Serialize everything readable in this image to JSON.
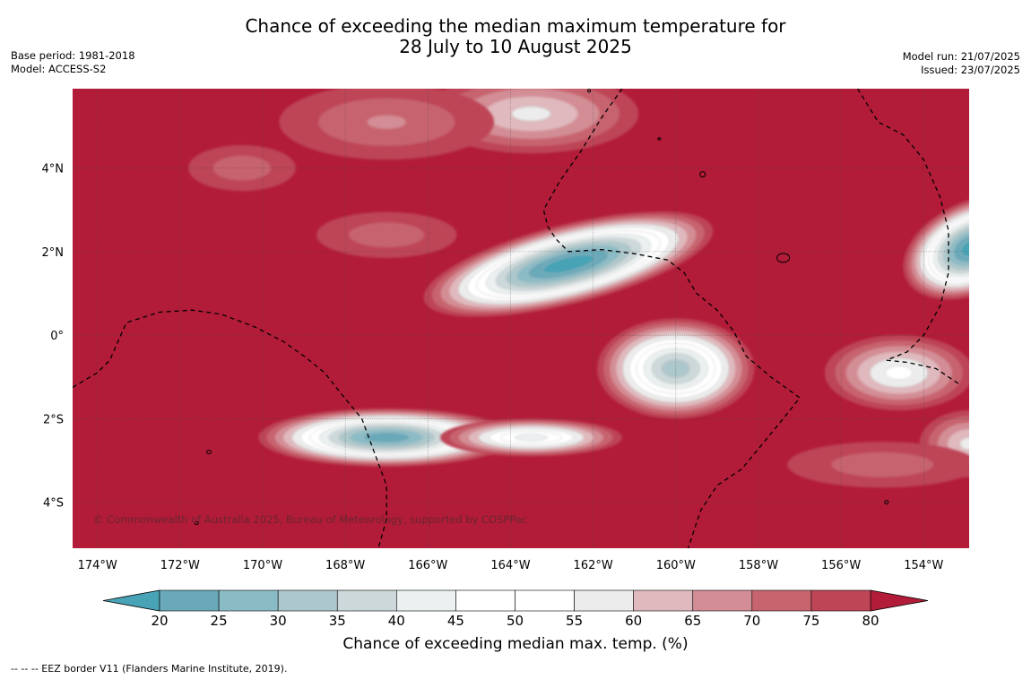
{
  "title": {
    "line1": "Chance of exceeding the median maximum temperature for",
    "line2": "28 July to 10 August 2025"
  },
  "meta": {
    "base_period": "Base period: 1981-2018",
    "model": "Model: ACCESS-S2",
    "model_run": "Model run: 21/07/2025",
    "issued": "Issued: 23/07/2025"
  },
  "map": {
    "copyright": "© Commonwealth of Australia 2025, Bureau of Meteorology, supported by COSPPac",
    "lon_range": [
      -174.6,
      -152.9
    ],
    "lat_range": [
      -5.1,
      5.9
    ],
    "x_ticks": [
      {
        "lon": -174,
        "label": "174°W"
      },
      {
        "lon": -172,
        "label": "172°W"
      },
      {
        "lon": -170,
        "label": "170°W"
      },
      {
        "lon": -168,
        "label": "168°W"
      },
      {
        "lon": -166,
        "label": "166°W"
      },
      {
        "lon": -164,
        "label": "164°W"
      },
      {
        "lon": -162,
        "label": "162°W"
      },
      {
        "lon": -160,
        "label": "160°W"
      },
      {
        "lon": -158,
        "label": "158°W"
      },
      {
        "lon": -156,
        "label": "156°W"
      },
      {
        "lon": -154,
        "label": "154°W"
      }
    ],
    "y_ticks": [
      {
        "lat": 4,
        "label": "4°N"
      },
      {
        "lat": 2,
        "label": "2°N"
      },
      {
        "lat": 0,
        "label": "0°"
      },
      {
        "lat": -2,
        "label": "2°S"
      },
      {
        "lat": -4,
        "label": "4°S"
      }
    ],
    "background_percent": 85,
    "anomalies": [
      {
        "lon": -162.6,
        "lat": 1.7,
        "rx": 3.6,
        "ry": 0.95,
        "rot": -14,
        "min": 20
      },
      {
        "lon": -160.0,
        "lat": -0.8,
        "rx": 1.9,
        "ry": 1.2,
        "rot": 0,
        "min": 35
      },
      {
        "lon": -167.0,
        "lat": -2.45,
        "rx": 3.1,
        "ry": 0.7,
        "rot": 0,
        "min": 25
      },
      {
        "lon": -163.5,
        "lat": -2.45,
        "rx": 2.2,
        "ry": 0.45,
        "rot": 0,
        "min": 45
      },
      {
        "lon": -152.8,
        "lat": 2.1,
        "rx": 1.8,
        "ry": 1.1,
        "rot": -25,
        "min": 20
      },
      {
        "lon": -154.6,
        "lat": -0.9,
        "rx": 1.8,
        "ry": 0.9,
        "rot": 0,
        "min": 55
      },
      {
        "lon": -152.9,
        "lat": -2.6,
        "rx": 1.2,
        "ry": 0.8,
        "rot": 0,
        "min": 60
      },
      {
        "lon": -163.5,
        "lat": 5.3,
        "rx": 2.6,
        "ry": 0.95,
        "rot": 0,
        "min": 60
      },
      {
        "lon": -167.0,
        "lat": 5.1,
        "rx": 2.6,
        "ry": 0.9,
        "rot": 0,
        "min": 70
      },
      {
        "lon": -170.5,
        "lat": 4.0,
        "rx": 1.3,
        "ry": 0.55,
        "rot": 0,
        "min": 72
      },
      {
        "lon": -167.0,
        "lat": 2.4,
        "rx": 1.7,
        "ry": 0.55,
        "rot": 0,
        "min": 72
      },
      {
        "lon": -155.0,
        "lat": -3.1,
        "rx": 2.3,
        "ry": 0.55,
        "rot": 0,
        "min": 72
      }
    ],
    "eez_borders": [
      [
        [
          -174.6,
          -1.25
        ],
        [
          -174.0,
          -0.9
        ],
        [
          -173.7,
          -0.6
        ],
        [
          -173.3,
          0.3
        ],
        [
          -172.5,
          0.55
        ],
        [
          -171.7,
          0.6
        ],
        [
          -171.0,
          0.5
        ],
        [
          -170.2,
          0.2
        ],
        [
          -169.5,
          -0.15
        ],
        [
          -169.0,
          -0.5
        ],
        [
          -168.5,
          -0.9
        ],
        [
          -168.1,
          -1.4
        ],
        [
          -167.6,
          -2.0
        ],
        [
          -167.3,
          -2.8
        ],
        [
          -167.0,
          -3.6
        ],
        [
          -167.0,
          -4.4
        ],
        [
          -167.2,
          -5.1
        ]
      ],
      [
        [
          -161.3,
          5.9
        ],
        [
          -161.8,
          5.2
        ],
        [
          -162.3,
          4.4
        ],
        [
          -162.8,
          3.7
        ],
        [
          -163.2,
          3.0
        ],
        [
          -163.1,
          2.6
        ],
        [
          -162.9,
          2.3
        ],
        [
          -162.6,
          2.0
        ],
        [
          -161.8,
          2.05
        ],
        [
          -161.0,
          1.95
        ],
        [
          -160.2,
          1.8
        ],
        [
          -159.8,
          1.5
        ],
        [
          -159.5,
          1.0
        ],
        [
          -159.0,
          0.6
        ],
        [
          -158.6,
          0.1
        ],
        [
          -158.3,
          -0.5
        ],
        [
          -157.7,
          -1.0
        ],
        [
          -157.0,
          -1.5
        ],
        [
          -157.4,
          -2.0
        ],
        [
          -157.9,
          -2.6
        ],
        [
          -158.4,
          -3.2
        ],
        [
          -159.0,
          -3.6
        ],
        [
          -159.4,
          -4.2
        ],
        [
          -159.6,
          -4.8
        ],
        [
          -159.7,
          -5.1
        ]
      ],
      [
        [
          -155.6,
          5.9
        ],
        [
          -155.1,
          5.1
        ],
        [
          -154.5,
          4.8
        ],
        [
          -154.0,
          4.2
        ],
        [
          -153.6,
          3.3
        ],
        [
          -153.4,
          2.5
        ],
        [
          -153.4,
          1.5
        ],
        [
          -153.6,
          0.7
        ],
        [
          -154.0,
          0.0
        ],
        [
          -154.4,
          -0.4
        ],
        [
          -154.9,
          -0.6
        ],
        [
          -154.4,
          -0.65
        ],
        [
          -153.7,
          -0.8
        ],
        [
          -153.1,
          -1.2
        ]
      ]
    ],
    "islands": [
      {
        "lon": -159.35,
        "lat": 3.85,
        "rx": 3,
        "ry": 3
      },
      {
        "lon": -157.4,
        "lat": 1.85,
        "rx": 7,
        "ry": 5
      },
      {
        "lon": -171.3,
        "lat": -2.8,
        "rx": 2.5,
        "ry": 2
      },
      {
        "lon": -162.1,
        "lat": 5.85,
        "rx": 1.5,
        "ry": 1.5
      },
      {
        "lon": -160.4,
        "lat": 4.7,
        "rx": 1.5,
        "ry": 1.2
      },
      {
        "lon": -171.6,
        "lat": -4.5,
        "rx": 2,
        "ry": 1.5
      },
      {
        "lon": -154.9,
        "lat": -4.0,
        "rx": 2,
        "ry": 2
      }
    ]
  },
  "colorbar": {
    "label": "Chance of exceeding median max. temp. (%)",
    "ticks": [
      "20",
      "25",
      "30",
      "35",
      "40",
      "45",
      "50",
      "55",
      "60",
      "65",
      "70",
      "75",
      "80"
    ],
    "colors": [
      "#69a9b9",
      "#8bbcc6",
      "#adc8cc",
      "#ccd8d9",
      "#ebf0f0",
      "#ffffff",
      "#ffffff",
      "#ececec",
      "#dfb9bd",
      "#d38d95",
      "#c7646e",
      "#bd4556"
    ],
    "low_color": "#47a3b5",
    "high_color": "#b21c38"
  },
  "footnote": "--  --  -- EEZ border V11 (Flanders Marine Institute, 2019)."
}
